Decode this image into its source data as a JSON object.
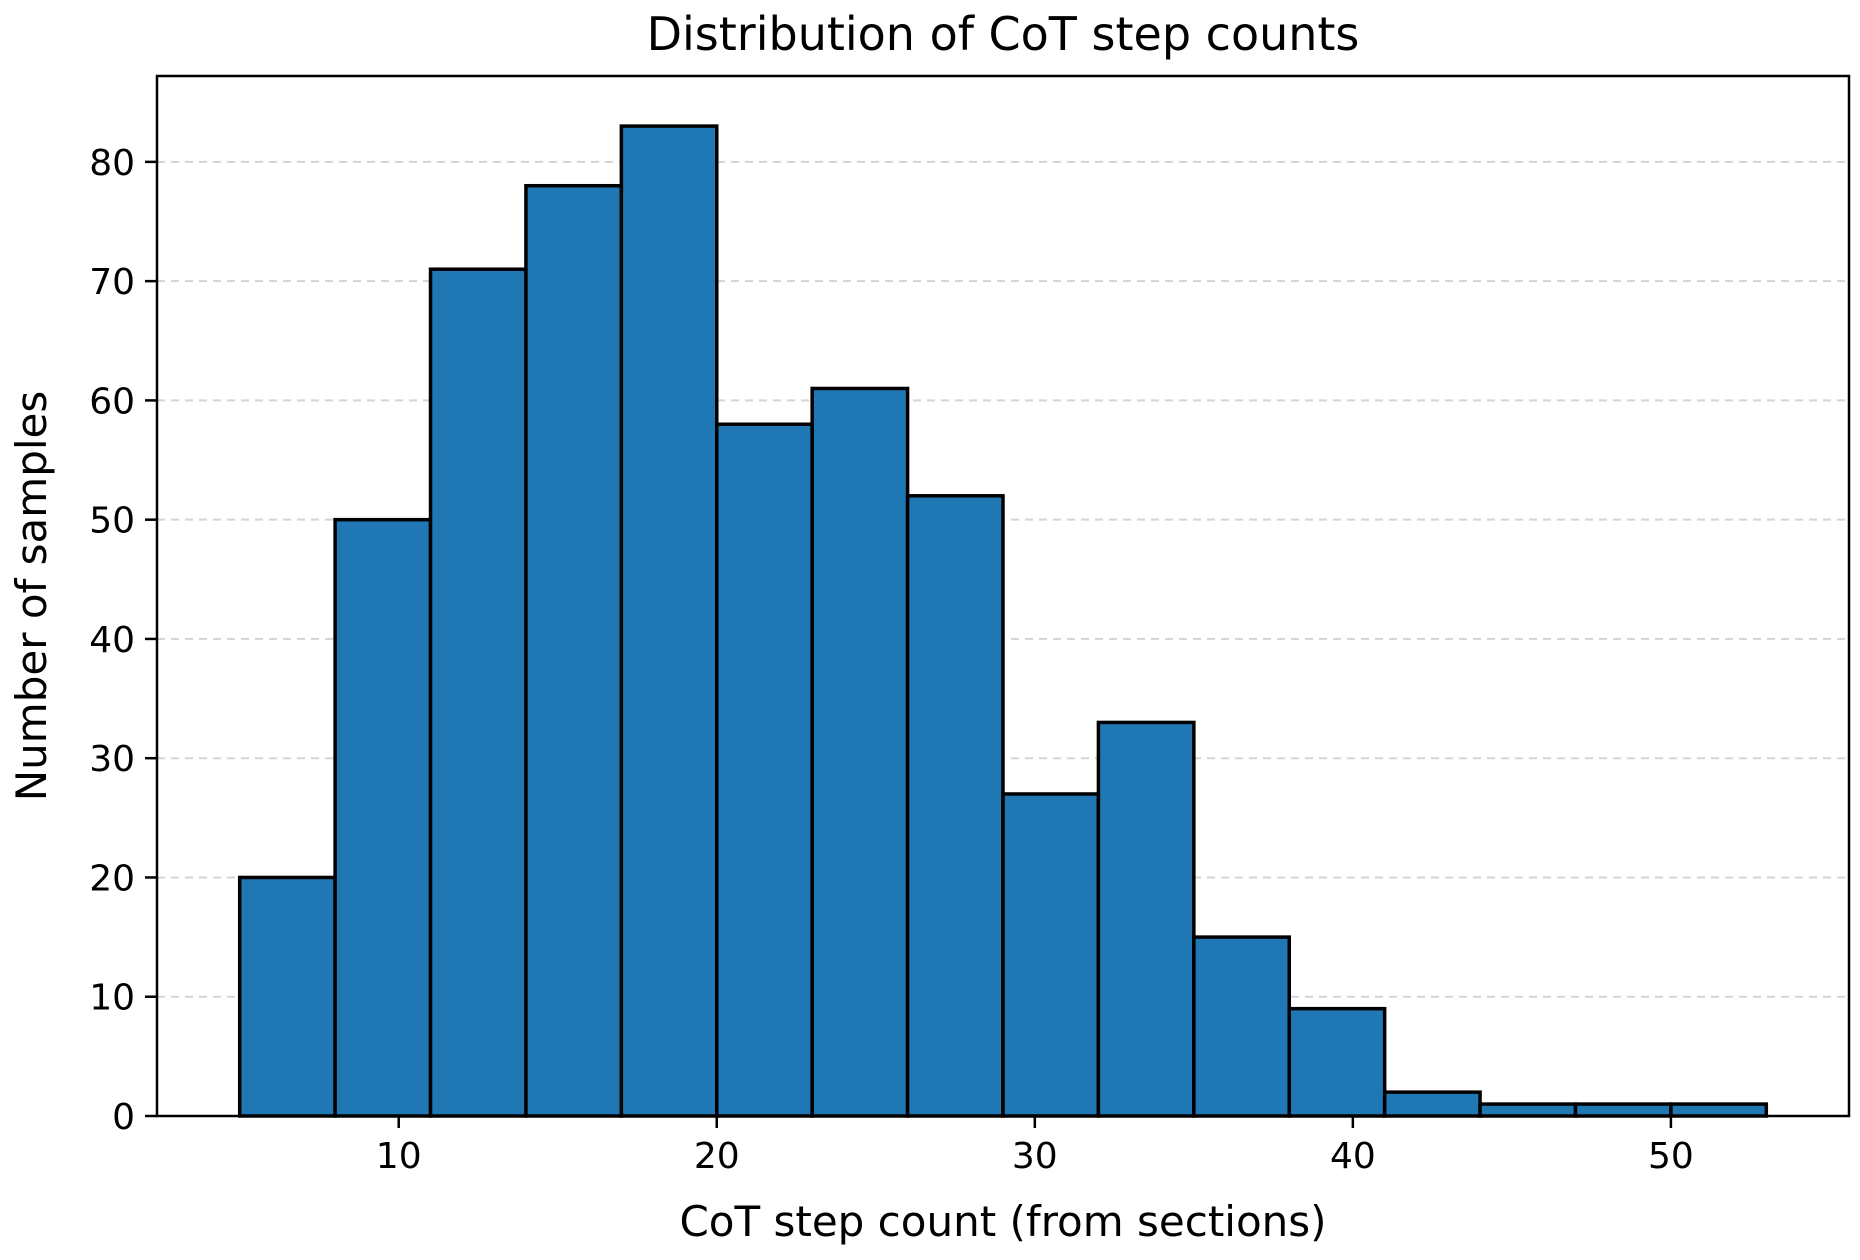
{
  "chart_data": {
    "type": "bar",
    "title": "Distribution of CoT step counts",
    "xlabel": "CoT step count (from sections)",
    "ylabel": "Number of samples",
    "bin_edges": [
      5,
      8,
      11,
      14,
      17,
      20,
      23,
      26,
      29,
      32,
      35,
      38,
      41,
      44,
      47,
      50,
      53
    ],
    "values": [
      20,
      50,
      71,
      78,
      83,
      58,
      61,
      52,
      27,
      33,
      15,
      9,
      2,
      1,
      1,
      1
    ],
    "xlim": [
      2.4,
      55.6
    ],
    "ylim": [
      0,
      87.2
    ],
    "xticks": [
      10,
      20,
      30,
      40,
      50
    ],
    "yticks": [
      0,
      10,
      20,
      30,
      40,
      50,
      60,
      70,
      80
    ],
    "grid": "y-dashed",
    "colors": {
      "bar_fill": "#1f77b4",
      "bar_edge": "#000000"
    }
  }
}
